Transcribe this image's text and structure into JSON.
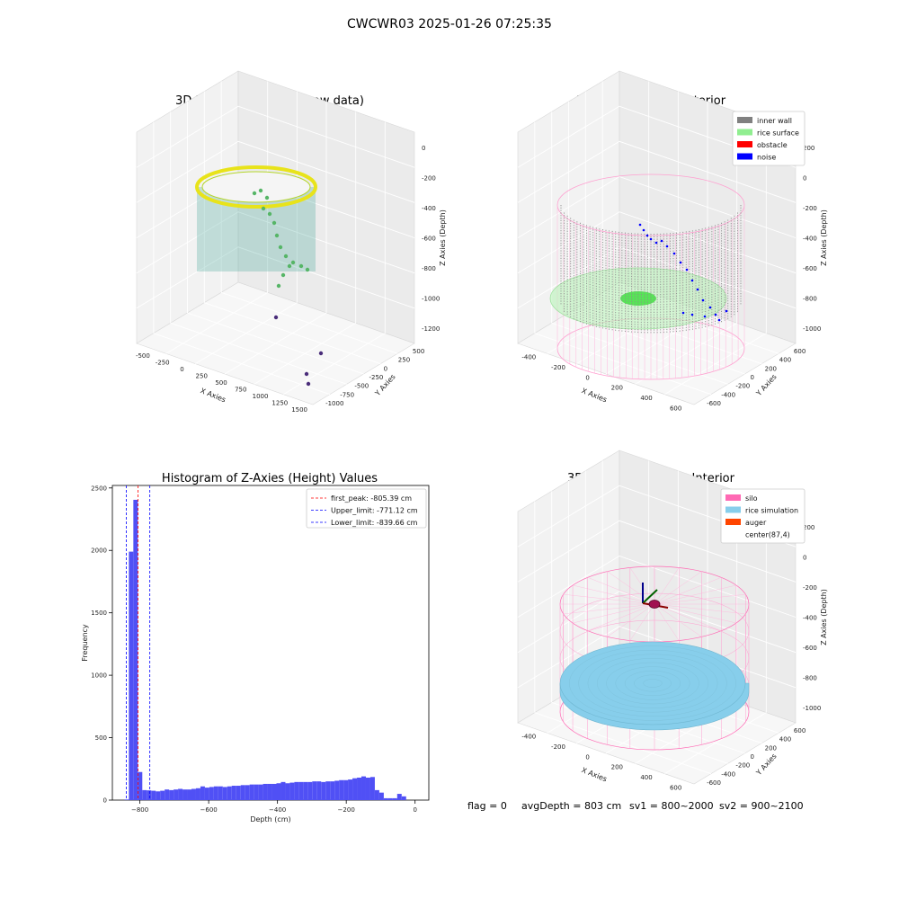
{
  "suptitle": "CWCWR03 2025-01-26 07:25:35",
  "chart_data": [
    {
      "type": "scatter3d",
      "title": "3D Plot of Silo Interior(row data)",
      "xlabel": "X Axies",
      "ylabel": "Y Axies",
      "zlabel": "Z Axies (Depth)",
      "xticks": [
        "-500",
        "-250",
        "0",
        "250",
        "500",
        "750",
        "1000",
        "1250",
        "1500"
      ],
      "yticks": [
        "500",
        "250",
        "0",
        "-250",
        "-500",
        "-750",
        "-1000"
      ],
      "zticks": [
        "0",
        "-200",
        "-400",
        "-600",
        "-800",
        "-1000",
        "-1200"
      ],
      "colormap": "viridis",
      "outlier_points": [
        {
          "x": 1200,
          "y": -300,
          "z": -1150
        },
        {
          "x": 1450,
          "y": -700,
          "z": -1200
        },
        {
          "x": 1400,
          "y": -950,
          "z": -1200
        },
        {
          "x": 1350,
          "y": -1000,
          "z": -1250
        }
      ]
    },
    {
      "type": "scatter3d",
      "title": "3D classify of Silo Interior",
      "xlabel": "X Axies",
      "ylabel": "Y Axies",
      "zlabel": "Z Axies (Depth)",
      "xticks": [
        "-400",
        "-200",
        "0",
        "200",
        "400",
        "600"
      ],
      "yticks": [
        "600",
        "400",
        "200",
        "0",
        "-200",
        "-400",
        "-600"
      ],
      "zticks": [
        "200",
        "0",
        "-200",
        "-400",
        "-600",
        "-800",
        "-1000"
      ],
      "legend": [
        {
          "label": "inner wall",
          "color": "#808080"
        },
        {
          "label": "rice surface",
          "color": "#90ee90"
        },
        {
          "label": "obstacle",
          "color": "#ff0000"
        },
        {
          "label": "noise",
          "color": "#0000ff"
        }
      ],
      "legend_position": "top-right"
    },
    {
      "type": "bar",
      "title": "Histogram of Z-Axies (Height) Values",
      "xlabel": "Depth (cm)",
      "ylabel": "Frequency",
      "xlim": [
        -880,
        40
      ],
      "ylim": [
        0,
        2520
      ],
      "xticks": [
        "−800",
        "−600",
        "−400",
        "−200",
        "0"
      ],
      "yticks": [
        "0",
        "500",
        "1000",
        "1500",
        "2000",
        "2500"
      ],
      "bar_color": "#5050f5",
      "bins": [
        {
          "x0": -845,
          "x1": -832,
          "count": 5
        },
        {
          "x0": -832,
          "x1": -819,
          "count": 1990
        },
        {
          "x0": -819,
          "x1": -806,
          "count": 2405
        },
        {
          "x0": -806,
          "x1": -793,
          "count": 225
        },
        {
          "x0": -793,
          "x1": -780,
          "count": 80
        },
        {
          "x0": -780,
          "x1": -767,
          "count": 78
        },
        {
          "x0": -767,
          "x1": -754,
          "count": 75
        },
        {
          "x0": -754,
          "x1": -741,
          "count": 70
        },
        {
          "x0": -741,
          "x1": -728,
          "count": 75
        },
        {
          "x0": -728,
          "x1": -715,
          "count": 85
        },
        {
          "x0": -715,
          "x1": -702,
          "count": 80
        },
        {
          "x0": -702,
          "x1": -689,
          "count": 85
        },
        {
          "x0": -689,
          "x1": -676,
          "count": 90
        },
        {
          "x0": -676,
          "x1": -663,
          "count": 85
        },
        {
          "x0": -663,
          "x1": -650,
          "count": 85
        },
        {
          "x0": -650,
          "x1": -637,
          "count": 90
        },
        {
          "x0": -637,
          "x1": -624,
          "count": 95
        },
        {
          "x0": -624,
          "x1": -611,
          "count": 110
        },
        {
          "x0": -611,
          "x1": -598,
          "count": 100
        },
        {
          "x0": -598,
          "x1": -585,
          "count": 105
        },
        {
          "x0": -585,
          "x1": -572,
          "count": 110
        },
        {
          "x0": -572,
          "x1": -559,
          "count": 110
        },
        {
          "x0": -559,
          "x1": -546,
          "count": 105
        },
        {
          "x0": -546,
          "x1": -533,
          "count": 110
        },
        {
          "x0": -533,
          "x1": -520,
          "count": 115
        },
        {
          "x0": -520,
          "x1": -507,
          "count": 115
        },
        {
          "x0": -507,
          "x1": -494,
          "count": 120
        },
        {
          "x0": -494,
          "x1": -481,
          "count": 120
        },
        {
          "x0": -481,
          "x1": -468,
          "count": 125
        },
        {
          "x0": -468,
          "x1": -455,
          "count": 125
        },
        {
          "x0": -455,
          "x1": -442,
          "count": 125
        },
        {
          "x0": -442,
          "x1": -429,
          "count": 130
        },
        {
          "x0": -429,
          "x1": -416,
          "count": 130
        },
        {
          "x0": -416,
          "x1": -403,
          "count": 130
        },
        {
          "x0": -403,
          "x1": -390,
          "count": 135
        },
        {
          "x0": -390,
          "x1": -377,
          "count": 145
        },
        {
          "x0": -377,
          "x1": -364,
          "count": 135
        },
        {
          "x0": -364,
          "x1": -351,
          "count": 140
        },
        {
          "x0": -351,
          "x1": -338,
          "count": 145
        },
        {
          "x0": -338,
          "x1": -325,
          "count": 145
        },
        {
          "x0": -325,
          "x1": -312,
          "count": 145
        },
        {
          "x0": -312,
          "x1": -299,
          "count": 145
        },
        {
          "x0": -299,
          "x1": -286,
          "count": 150
        },
        {
          "x0": -286,
          "x1": -273,
          "count": 150
        },
        {
          "x0": -273,
          "x1": -260,
          "count": 145
        },
        {
          "x0": -260,
          "x1": -247,
          "count": 150
        },
        {
          "x0": -247,
          "x1": -234,
          "count": 150
        },
        {
          "x0": -234,
          "x1": -221,
          "count": 155
        },
        {
          "x0": -221,
          "x1": -208,
          "count": 160
        },
        {
          "x0": -208,
          "x1": -195,
          "count": 160
        },
        {
          "x0": -195,
          "x1": -182,
          "count": 165
        },
        {
          "x0": -182,
          "x1": -169,
          "count": 175
        },
        {
          "x0": -169,
          "x1": -156,
          "count": 180
        },
        {
          "x0": -156,
          "x1": -143,
          "count": 190
        },
        {
          "x0": -143,
          "x1": -130,
          "count": 180
        },
        {
          "x0": -130,
          "x1": -117,
          "count": 185
        },
        {
          "x0": -117,
          "x1": -104,
          "count": 80
        },
        {
          "x0": -104,
          "x1": -91,
          "count": 60
        },
        {
          "x0": -91,
          "x1": -78,
          "count": 15
        },
        {
          "x0": -78,
          "x1": -65,
          "count": 15
        },
        {
          "x0": -65,
          "x1": -52,
          "count": 15
        },
        {
          "x0": -52,
          "x1": -39,
          "count": 50
        },
        {
          "x0": -39,
          "x1": -26,
          "count": 30
        }
      ],
      "vlines": [
        {
          "label": "first_peak: -805.39 cm",
          "x": -805.39,
          "color": "#ff0000"
        },
        {
          "label": "Upper_limit: -771.12 cm",
          "x": -771.12,
          "color": "#0000ff"
        },
        {
          "label": "Lower_limit: -839.66 cm",
          "x": -839.66,
          "color": "#0000ff"
        }
      ],
      "legend_position": "top-right"
    },
    {
      "type": "surface3d",
      "title": "3D simulation of Silo Interior",
      "xlabel": "X Axies",
      "ylabel": "Y Axies",
      "zlabel": "Z Axies (Depth)",
      "xticks": [
        "-400",
        "-200",
        "0",
        "200",
        "400",
        "600"
      ],
      "yticks": [
        "600",
        "400",
        "200",
        "0",
        "-200",
        "-400",
        "-600"
      ],
      "zticks": [
        "200",
        "0",
        "-200",
        "-400",
        "-600",
        "-800",
        "-1000"
      ],
      "legend": [
        {
          "label": "silo",
          "color": "#ff69b4"
        },
        {
          "label": "rice simulation",
          "color": "#87ceeb"
        },
        {
          "label": "auger",
          "color": "#ff4500"
        },
        {
          "label": "center(87,4)",
          "color": "#ffffff"
        }
      ],
      "legend_position": "top-right"
    }
  ],
  "status": {
    "flag": "flag = 0",
    "avgdepth": "avgDepth = 803 cm",
    "sv1": "sv1 = 800~2000",
    "sv2": "sv2 = 900~2100"
  }
}
